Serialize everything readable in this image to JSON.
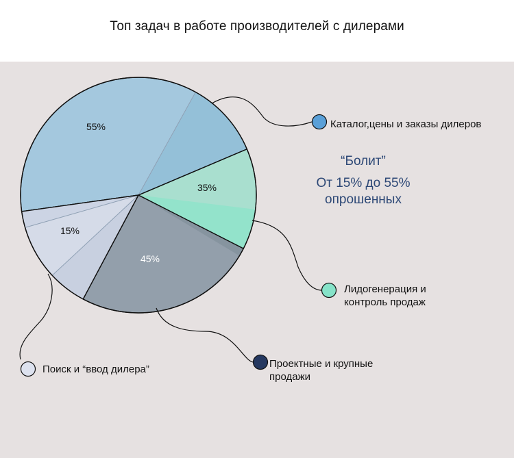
{
  "title": "Топ задач в работе производителей с дилерами",
  "note": {
    "line1": "“Болит”",
    "line2": "От 15% до 55%",
    "line3": "опрошенных"
  },
  "colors": {
    "panel": "#e6e1e1",
    "catalog": "#a4c8de",
    "catalog_marker": "#5aa0d8",
    "leads": "#a9dfcf",
    "leads_marker": "#86e3c9",
    "projects": "#939fab",
    "projects_marker": "#253860",
    "search": "#d5dbe8",
    "search_marker": "#dde2ef",
    "note_text": "#2d4876"
  },
  "chart_data": {
    "type": "pie",
    "title": "Топ задач в работе производителей с дилерами",
    "slices": [
      {
        "name": "Каталог,цены и заказы дилеров",
        "value": 55,
        "label": "55%",
        "color": "#a4c8de"
      },
      {
        "name": "Лидогенерация и контроль продаж",
        "value": 35,
        "label": "35%",
        "color": "#a9dfcf"
      },
      {
        "name": "Проектные и крупные продажи",
        "value": 45,
        "label": "45%",
        "color": "#939fab"
      },
      {
        "name": "Поиск и “ввод дилера”",
        "value": 15,
        "label": "15%",
        "color": "#d5dbe8"
      }
    ],
    "legend": [
      {
        "lines": [
          "Каталог,цены и заказы дилеров"
        ],
        "marker": "#5aa0d8"
      },
      {
        "lines": [
          "Лидогенерация и",
          "контроль продаж"
        ],
        "marker": "#86e3c9"
      },
      {
        "lines": [
          "Проектные и крупные",
          "продажи"
        ],
        "marker": "#253860"
      },
      {
        "lines": [
          "Поиск и “ввод дилера”"
        ],
        "marker": "#dde2ef"
      }
    ]
  }
}
